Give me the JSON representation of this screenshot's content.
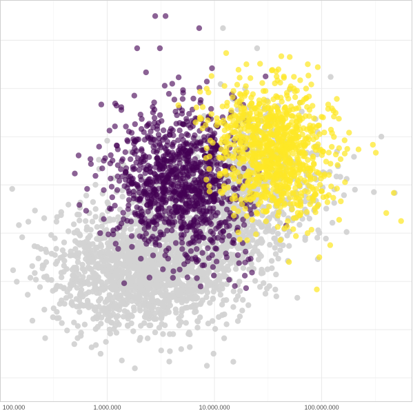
{
  "chart_data": {
    "type": "scatter",
    "title": "",
    "xlabel": "",
    "ylabel": "",
    "x_scale": "log10",
    "xlim": [
      100000,
      700000000
    ],
    "ylim": [
      0,
      1
    ],
    "x_ticks": [
      {
        "value": 100000,
        "label": "100.000"
      },
      {
        "value": 1000000,
        "label": "1.000.000"
      },
      {
        "value": 10000000,
        "label": "10.000.000"
      },
      {
        "value": 100000000,
        "label": "100.000.000"
      }
    ],
    "y_gridlines": [
      0.06,
      0.18,
      0.3,
      0.42,
      0.54,
      0.66,
      0.78,
      0.9
    ],
    "grid": true,
    "legend": "none",
    "series": [
      {
        "color": "#d3d3d3",
        "opacity": 0.95,
        "clusters": [
          {
            "center": [
              2200000,
              0.33
            ],
            "spread": [
              0.42,
              0.075
            ],
            "count": 1500
          },
          {
            "center": [
              9000000,
              0.46
            ],
            "spread": [
              0.38,
              0.09
            ],
            "count": 700
          },
          {
            "center": [
              30000000,
              0.56
            ],
            "spread": [
              0.32,
              0.09
            ],
            "count": 300
          }
        ],
        "outliers": [
          [
            150000,
            0.44
          ],
          [
            130000,
            0.53
          ],
          [
            250000,
            0.34
          ],
          [
            340000,
            0.46
          ],
          [
            8500000,
            0.09
          ],
          [
            9800000,
            0.12
          ],
          [
            15000000,
            0.1
          ],
          [
            12000000,
            0.93
          ],
          [
            1400000,
            0.28
          ],
          [
            600000,
            0.24
          ],
          [
            200000000,
            0.61
          ],
          [
            360000000,
            0.66
          ],
          [
            480000000,
            0.52
          ],
          [
            25000000,
            0.88
          ],
          [
            1000000,
            0.65
          ],
          [
            780000,
            0.48
          ]
        ]
      },
      {
        "color": "#440154",
        "opacity": 0.62,
        "clusters": [
          {
            "center": [
              4200000,
              0.56
            ],
            "spread": [
              0.28,
              0.09
            ],
            "count": 850
          },
          {
            "center": [
              9000000,
              0.48
            ],
            "spread": [
              0.26,
              0.08
            ],
            "count": 180
          }
        ],
        "outliers": [
          [
            2800000,
            0.96
          ],
          [
            3500000,
            0.96
          ],
          [
            7200000,
            0.93
          ],
          [
            3100000,
            0.88
          ],
          [
            1900000,
            0.88
          ],
          [
            650000,
            0.53
          ],
          [
            550000,
            0.49
          ],
          [
            930000,
            0.6
          ],
          [
            860000,
            0.42
          ],
          [
            12000000,
            0.41
          ],
          [
            5600000,
            0.31
          ],
          [
            13000000,
            0.36
          ],
          [
            880000,
            0.74
          ],
          [
            2300000,
            0.82
          ],
          [
            30000000,
            0.81
          ],
          [
            3300000,
            0.33
          ]
        ]
      },
      {
        "color": "#fde725",
        "opacity": 0.72,
        "clusters": [
          {
            "center": [
              40000000,
              0.62
            ],
            "spread": [
              0.24,
              0.08
            ],
            "count": 800
          },
          {
            "center": [
              18000000,
              0.68
            ],
            "spread": [
              0.22,
              0.06
            ],
            "count": 150
          }
        ],
        "outliers": [
          [
            42000000,
            0.86
          ],
          [
            55000000,
            0.78
          ],
          [
            130000000,
            0.71
          ],
          [
            300000000,
            0.64
          ],
          [
            320000000,
            0.62
          ],
          [
            470000000,
            0.52
          ],
          [
            400000000,
            0.47
          ],
          [
            550000000,
            0.45
          ],
          [
            120000000,
            0.39
          ],
          [
            95000000,
            0.36
          ],
          [
            90000000,
            0.28
          ],
          [
            74000000,
            0.42
          ],
          [
            38000000,
            0.81
          ],
          [
            115000000,
            0.74
          ],
          [
            180000000,
            0.67
          ],
          [
            8800000,
            0.77
          ]
        ]
      }
    ]
  }
}
